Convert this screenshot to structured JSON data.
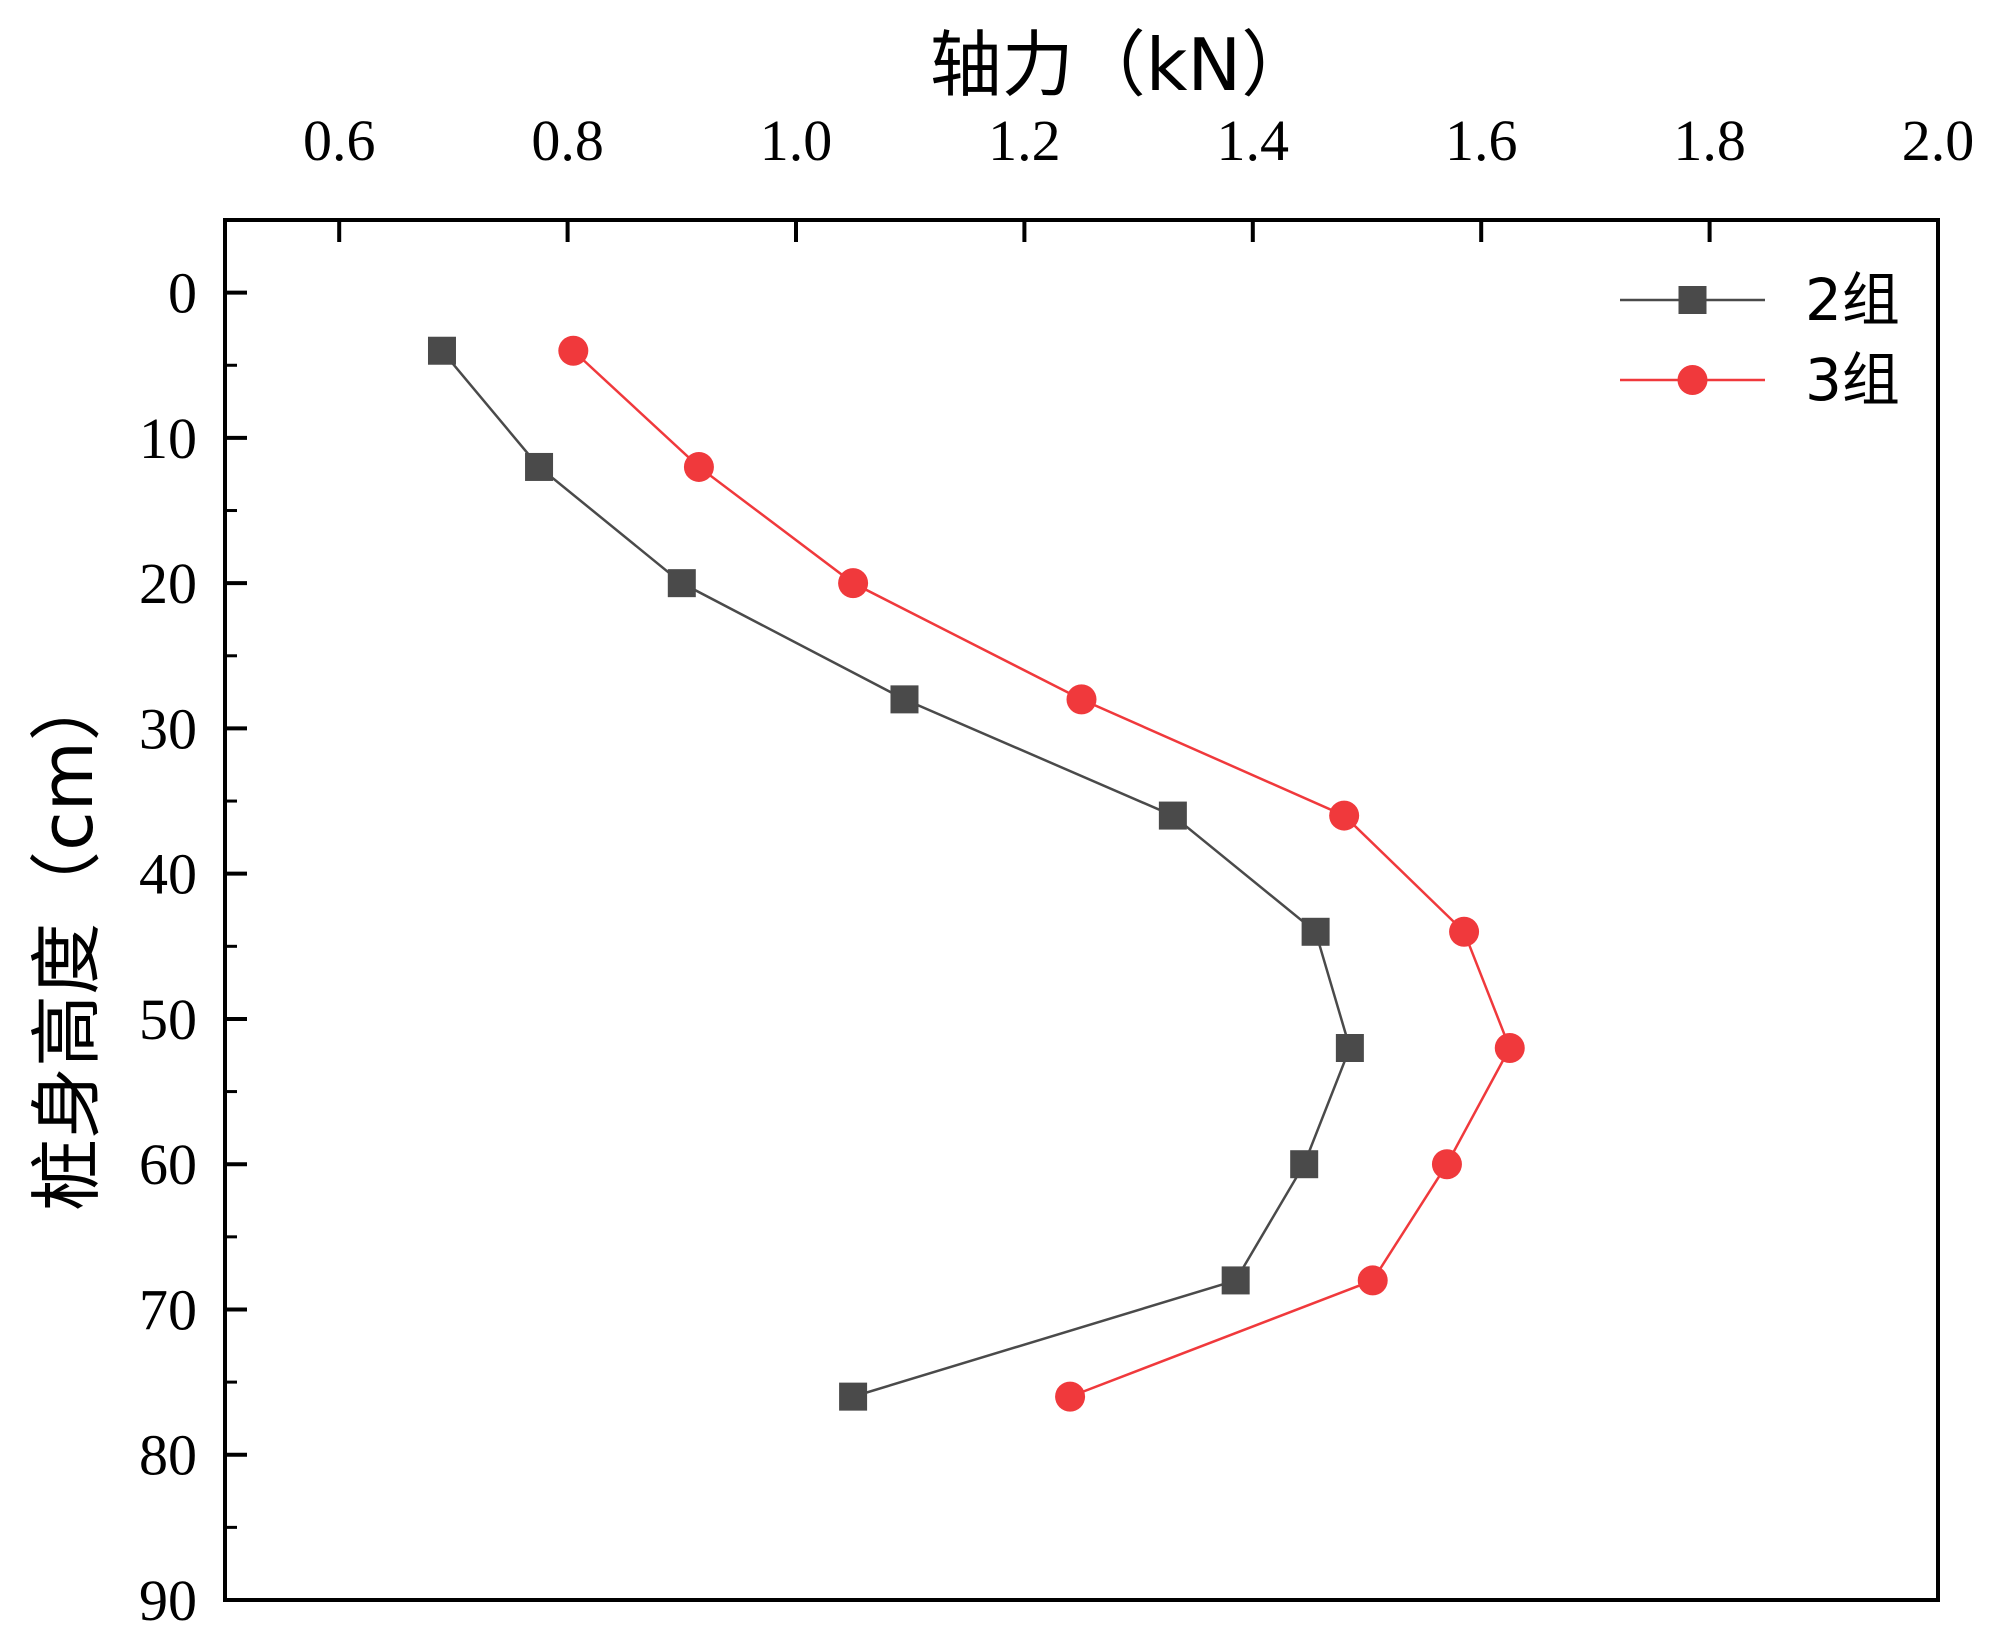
{
  "chart_data": {
    "type": "line",
    "title": "",
    "xlabel": "轴力（kN）",
    "ylabel": "桩身高度（cm）",
    "x_axis_position": "top",
    "y_axis_inverted": true,
    "xlim": [
      0.5,
      2.0
    ],
    "ylim": [
      -5,
      90
    ],
    "x_ticks": [
      "0.6",
      "0.8",
      "1.0",
      "1.2",
      "1.4",
      "1.6",
      "1.8",
      "2.0"
    ],
    "x_tick_values": [
      0.6,
      0.8,
      1.0,
      1.2,
      1.4,
      1.6,
      1.8,
      2.0
    ],
    "y_ticks": [
      "0",
      "10",
      "20",
      "30",
      "40",
      "50",
      "60",
      "70",
      "80",
      "90"
    ],
    "y_tick_values": [
      0,
      10,
      20,
      30,
      40,
      50,
      60,
      70,
      80,
      90
    ],
    "grid": false,
    "legend_position": "top-right",
    "series": [
      {
        "name": "2组",
        "marker": "square",
        "color": "#4a4a4a",
        "points": [
          {
            "x": 0.69,
            "y": 4
          },
          {
            "x": 0.775,
            "y": 12
          },
          {
            "x": 0.9,
            "y": 20
          },
          {
            "x": 1.095,
            "y": 28
          },
          {
            "x": 1.33,
            "y": 36
          },
          {
            "x": 1.455,
            "y": 44
          },
          {
            "x": 1.485,
            "y": 52
          },
          {
            "x": 1.445,
            "y": 60
          },
          {
            "x": 1.385,
            "y": 68
          },
          {
            "x": 1.05,
            "y": 76
          }
        ]
      },
      {
        "name": "3组",
        "marker": "circle",
        "color": "#f0393c",
        "points": [
          {
            "x": 0.805,
            "y": 4
          },
          {
            "x": 0.915,
            "y": 12
          },
          {
            "x": 1.05,
            "y": 20
          },
          {
            "x": 1.25,
            "y": 28
          },
          {
            "x": 1.48,
            "y": 36
          },
          {
            "x": 1.585,
            "y": 44
          },
          {
            "x": 1.625,
            "y": 52
          },
          {
            "x": 1.57,
            "y": 60
          },
          {
            "x": 1.505,
            "y": 68
          },
          {
            "x": 1.24,
            "y": 76
          }
        ]
      }
    ]
  }
}
